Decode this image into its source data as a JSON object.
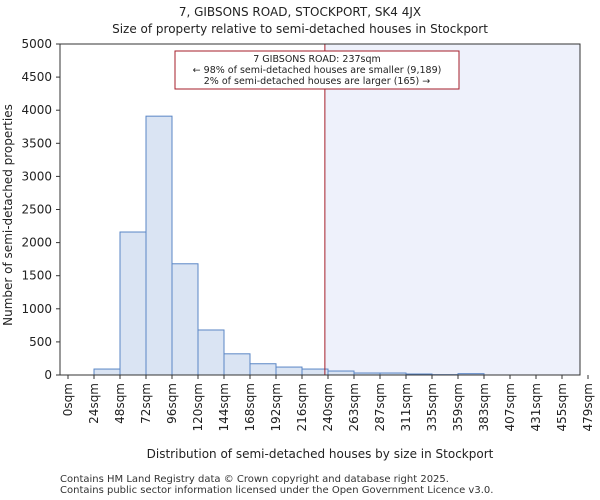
{
  "chart_data": {
    "type": "bar",
    "title": "7, GIBSONS ROAD, STOCKPORT, SK4 4JX",
    "subtitle": "Size of property relative to semi-detached houses in Stockport",
    "xlabel": "Distribution of semi-detached houses by size in Stockport",
    "ylabel": "Number of semi-detached properties",
    "ylim": [
      0,
      5000
    ],
    "yticks": [
      0,
      500,
      1000,
      1500,
      2000,
      2500,
      3000,
      3500,
      4000,
      4500,
      5000
    ],
    "categories": [
      "0sqm",
      "24sqm",
      "48sqm",
      "72sqm",
      "96sqm",
      "120sqm",
      "144sqm",
      "168sqm",
      "192sqm",
      "216sqm",
      "240sqm",
      "263sqm",
      "287sqm",
      "311sqm",
      "335sqm",
      "359sqm",
      "383sqm",
      "407sqm",
      "431sqm",
      "455sqm",
      "479sqm"
    ],
    "values": [
      0,
      90,
      2160,
      3910,
      1680,
      680,
      320,
      170,
      120,
      90,
      60,
      30,
      30,
      15,
      5,
      20,
      0,
      0,
      0,
      0,
      0
    ],
    "bar_color": "#dae4f3",
    "bar_edge_color": "#5a86c5",
    "marker": {
      "value_sqm": 237,
      "bin_position": 9.88,
      "color": "#a51e2a",
      "shade_color": "#eef1fb"
    },
    "annotation": {
      "lines": [
        "7 GIBSONS ROAD: 237sqm",
        "← 98% of semi-detached houses are smaller (9,189)",
        "2% of semi-detached houses are larger (165) →"
      ],
      "border_color": "#a51e2a"
    }
  },
  "footer": {
    "line1": "Contains HM Land Registry data © Crown copyright and database right 2025.",
    "line2": "Contains public sector information licensed under the Open Government Licence v3.0."
  }
}
